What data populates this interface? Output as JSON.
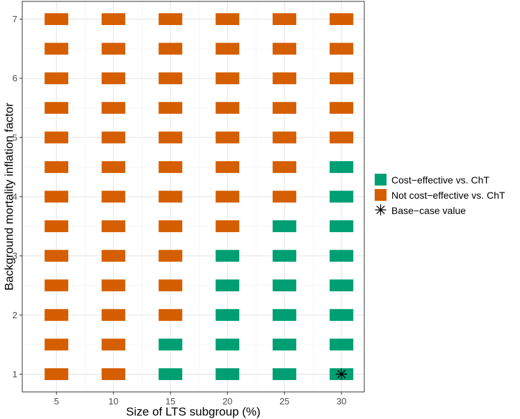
{
  "chart_data": {
    "type": "heatmap",
    "xlabel": "Size of LTS subgroup (%)",
    "ylabel": "Background mortality inflation factor",
    "x_ticks": [
      5,
      10,
      15,
      20,
      25,
      30
    ],
    "y_ticks": [
      1,
      2,
      3,
      4,
      5,
      6,
      7
    ],
    "xlim": [
      2,
      32
    ],
    "ylim": [
      0.7,
      7.3
    ],
    "grid": true,
    "legend_position": "right",
    "categories": {
      "ce": {
        "label": "Cost−effective vs. ChT",
        "color": "#009E73"
      },
      "nce": {
        "label": "Not cost−effective vs. ChT",
        "color": "#D55E00"
      }
    },
    "x": [
      5,
      10,
      15,
      20,
      25,
      30
    ],
    "y": [
      1,
      1.5,
      2,
      2.5,
      3,
      3.5,
      4,
      4.5,
      5,
      5.5,
      6,
      6.5,
      7
    ],
    "cells": [
      [
        "nce",
        "nce",
        "ce",
        "ce",
        "ce",
        "ce"
      ],
      [
        "nce",
        "nce",
        "ce",
        "ce",
        "ce",
        "ce"
      ],
      [
        "nce",
        "nce",
        "nce",
        "ce",
        "ce",
        "ce"
      ],
      [
        "nce",
        "nce",
        "nce",
        "ce",
        "ce",
        "ce"
      ],
      [
        "nce",
        "nce",
        "nce",
        "ce",
        "ce",
        "ce"
      ],
      [
        "nce",
        "nce",
        "nce",
        "nce",
        "ce",
        "ce"
      ],
      [
        "nce",
        "nce",
        "nce",
        "nce",
        "nce",
        "ce"
      ],
      [
        "nce",
        "nce",
        "nce",
        "nce",
        "nce",
        "ce"
      ],
      [
        "nce",
        "nce",
        "nce",
        "nce",
        "nce",
        "nce"
      ],
      [
        "nce",
        "nce",
        "nce",
        "nce",
        "nce",
        "nce"
      ],
      [
        "nce",
        "nce",
        "nce",
        "nce",
        "nce",
        "nce"
      ],
      [
        "nce",
        "nce",
        "nce",
        "nce",
        "nce",
        "nce"
      ],
      [
        "nce",
        "nce",
        "nce",
        "nce",
        "nce",
        "nce"
      ]
    ],
    "base_case": {
      "x": 30,
      "y": 1,
      "label": "Base−case value"
    }
  }
}
